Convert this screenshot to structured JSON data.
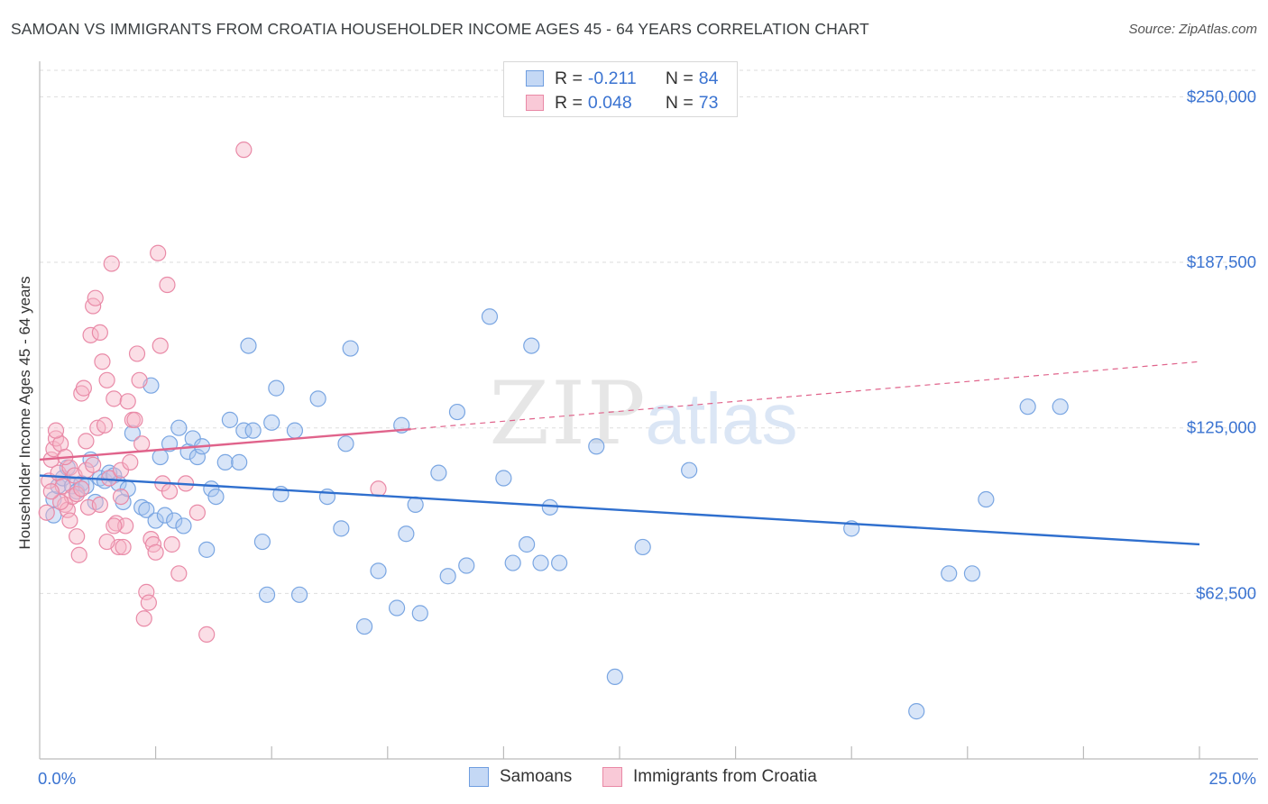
{
  "title": "SAMOAN VS IMMIGRANTS FROM CROATIA HOUSEHOLDER INCOME AGES 45 - 64 YEARS CORRELATION CHART",
  "source": "Source: ZipAtlas.com",
  "watermark": {
    "zip": "ZIP",
    "atlas": "atlas"
  },
  "stats": {
    "series1": {
      "r_label": "R =",
      "r_value": "-0.211",
      "n_label": "N =",
      "n_value": "84",
      "color": "#a8c5ef",
      "border": "#6f9ee0"
    },
    "series2": {
      "r_label": "R =",
      "r_value": "0.048",
      "n_label": "N =",
      "n_value": "73",
      "color": "#f7b6c8",
      "border": "#e989a6"
    }
  },
  "legend": {
    "series1": "Samoans",
    "series2": "Immigrants from Croatia"
  },
  "colors": {
    "samoan_fill": "rgba(168,197,239,0.45)",
    "samoan_stroke": "#7aa6e2",
    "croatia_fill": "rgba(247,182,200,0.45)",
    "croatia_stroke": "#e98aa7",
    "samoan_line": "#2f6fce",
    "croatia_line": "#e0638b",
    "tick_label": "#3a73d1",
    "grid": "#dddddd"
  },
  "chart_data": {
    "type": "scatter",
    "title": "SAMOAN VS IMMIGRANTS FROM CROATIA HOUSEHOLDER INCOME AGES 45 - 64 YEARS CORRELATION CHART",
    "xlabel": "",
    "ylabel": "Householder Income Ages 45 - 64 years",
    "xlim": [
      0,
      25
    ],
    "ylim": [
      0,
      260000
    ],
    "x_tick_labels": [
      {
        "value": 0,
        "label": "0.0%"
      },
      {
        "value": 25,
        "label": "25.0%"
      }
    ],
    "x_minor_ticks": [
      2.5,
      5,
      7.5,
      10,
      12.5,
      15,
      17.5,
      20,
      22.5,
      25
    ],
    "y_ticks": [
      {
        "value": 62500,
        "label": "$62,500"
      },
      {
        "value": 125000,
        "label": "$125,000"
      },
      {
        "value": 187500,
        "label": "$187,500"
      },
      {
        "value": 250000,
        "label": "$250,000"
      }
    ],
    "grid": true,
    "legend_position": "bottom",
    "series": [
      {
        "name": "Samoans",
        "points": [
          [
            0.3,
            92000
          ],
          [
            0.3,
            98000
          ],
          [
            0.4,
            103000
          ],
          [
            0.5,
            106000
          ],
          [
            0.7,
            103000
          ],
          [
            0.8,
            101000
          ],
          [
            0.9,
            104000
          ],
          [
            1.0,
            103000
          ],
          [
            1.1,
            113000
          ],
          [
            1.2,
            97000
          ],
          [
            1.3,
            106000
          ],
          [
            1.4,
            105000
          ],
          [
            1.5,
            108000
          ],
          [
            1.6,
            107000
          ],
          [
            1.7,
            104000
          ],
          [
            1.8,
            97000
          ],
          [
            1.9,
            102000
          ],
          [
            2.0,
            123000
          ],
          [
            2.2,
            95000
          ],
          [
            2.3,
            94000
          ],
          [
            2.4,
            141000
          ],
          [
            2.5,
            90000
          ],
          [
            2.6,
            114000
          ],
          [
            2.7,
            92000
          ],
          [
            2.8,
            119000
          ],
          [
            2.9,
            90000
          ],
          [
            3.0,
            125000
          ],
          [
            3.1,
            88000
          ],
          [
            3.2,
            116000
          ],
          [
            3.3,
            121000
          ],
          [
            3.4,
            114000
          ],
          [
            3.5,
            118000
          ],
          [
            3.6,
            79000
          ],
          [
            3.7,
            102000
          ],
          [
            3.8,
            99000
          ],
          [
            4.0,
            112000
          ],
          [
            4.1,
            128000
          ],
          [
            4.3,
            112000
          ],
          [
            4.4,
            124000
          ],
          [
            4.5,
            156000
          ],
          [
            4.6,
            124000
          ],
          [
            4.8,
            82000
          ],
          [
            4.9,
            62000
          ],
          [
            5.0,
            127000
          ],
          [
            5.1,
            140000
          ],
          [
            5.2,
            100000
          ],
          [
            5.5,
            124000
          ],
          [
            5.6,
            62000
          ],
          [
            6.0,
            136000
          ],
          [
            6.2,
            99000
          ],
          [
            6.5,
            87000
          ],
          [
            6.6,
            119000
          ],
          [
            6.7,
            155000
          ],
          [
            7.0,
            50000
          ],
          [
            7.3,
            71000
          ],
          [
            7.7,
            57000
          ],
          [
            7.8,
            126000
          ],
          [
            7.9,
            85000
          ],
          [
            8.1,
            96000
          ],
          [
            8.2,
            55000
          ],
          [
            8.6,
            108000
          ],
          [
            8.8,
            69000
          ],
          [
            9.0,
            131000
          ],
          [
            9.2,
            73000
          ],
          [
            9.7,
            167000
          ],
          [
            10.0,
            106000
          ],
          [
            10.2,
            74000
          ],
          [
            10.5,
            81000
          ],
          [
            10.6,
            156000
          ],
          [
            10.8,
            74000
          ],
          [
            11.0,
            95000
          ],
          [
            11.2,
            74000
          ],
          [
            12.0,
            118000
          ],
          [
            12.4,
            31000
          ],
          [
            13.0,
            80000
          ],
          [
            14.0,
            109000
          ],
          [
            17.5,
            87000
          ],
          [
            18.9,
            18000
          ],
          [
            19.6,
            70000
          ],
          [
            20.1,
            70000
          ],
          [
            20.4,
            98000
          ],
          [
            21.3,
            133000
          ],
          [
            22.0,
            133000
          ],
          [
            0.6,
            110000
          ]
        ]
      },
      {
        "name": "Immigrants from Croatia",
        "points": [
          [
            0.15,
            93000
          ],
          [
            0.2,
            105000
          ],
          [
            0.25,
            113000
          ],
          [
            0.3,
            117000
          ],
          [
            0.35,
            121000
          ],
          [
            0.4,
            108000
          ],
          [
            0.45,
            119000
          ],
          [
            0.5,
            103000
          ],
          [
            0.55,
            96000
          ],
          [
            0.6,
            94000
          ],
          [
            0.65,
            110000
          ],
          [
            0.7,
            99000
          ],
          [
            0.75,
            107000
          ],
          [
            0.8,
            100000
          ],
          [
            0.85,
            77000
          ],
          [
            0.9,
            138000
          ],
          [
            0.95,
            140000
          ],
          [
            1.0,
            109000
          ],
          [
            1.05,
            95000
          ],
          [
            1.1,
            160000
          ],
          [
            1.15,
            171000
          ],
          [
            1.2,
            174000
          ],
          [
            1.25,
            125000
          ],
          [
            1.3,
            161000
          ],
          [
            1.35,
            150000
          ],
          [
            1.4,
            126000
          ],
          [
            1.45,
            143000
          ],
          [
            1.5,
            106000
          ],
          [
            1.55,
            187000
          ],
          [
            1.6,
            136000
          ],
          [
            1.65,
            89000
          ],
          [
            1.7,
            80000
          ],
          [
            1.75,
            109000
          ],
          [
            1.8,
            80000
          ],
          [
            1.85,
            88000
          ],
          [
            1.9,
            135000
          ],
          [
            1.95,
            112000
          ],
          [
            2.0,
            128000
          ],
          [
            2.05,
            128000
          ],
          [
            2.1,
            153000
          ],
          [
            2.15,
            143000
          ],
          [
            2.2,
            119000
          ],
          [
            2.25,
            53000
          ],
          [
            2.3,
            63000
          ],
          [
            2.35,
            59000
          ],
          [
            2.4,
            83000
          ],
          [
            2.45,
            81000
          ],
          [
            2.5,
            78000
          ],
          [
            2.55,
            191000
          ],
          [
            2.6,
            156000
          ],
          [
            2.65,
            104000
          ],
          [
            2.75,
            179000
          ],
          [
            2.8,
            101000
          ],
          [
            2.85,
            81000
          ],
          [
            3.0,
            70000
          ],
          [
            3.15,
            104000
          ],
          [
            3.4,
            93000
          ],
          [
            3.6,
            47000
          ],
          [
            4.4,
            230000
          ],
          [
            7.3,
            102000
          ],
          [
            0.35,
            124000
          ],
          [
            0.45,
            97000
          ],
          [
            0.55,
            114000
          ],
          [
            0.65,
            90000
          ],
          [
            0.8,
            84000
          ],
          [
            0.9,
            102000
          ],
          [
            1.0,
            120000
          ],
          [
            1.15,
            111000
          ],
          [
            1.3,
            96000
          ],
          [
            1.45,
            82000
          ],
          [
            1.6,
            88000
          ],
          [
            1.75,
            99000
          ],
          [
            0.25,
            101000
          ]
        ]
      }
    ],
    "trend_lines": [
      {
        "series": "Samoans",
        "x": [
          0,
          25
        ],
        "y": [
          107000,
          81000
        ],
        "style": "solid"
      },
      {
        "series": "Immigrants from Croatia",
        "x": [
          0,
          8
        ],
        "y": [
          113000,
          124500
        ],
        "style": "solid"
      },
      {
        "series": "Immigrants from Croatia",
        "x": [
          8,
          25
        ],
        "y": [
          124500,
          150000
        ],
        "style": "dashed"
      }
    ]
  }
}
